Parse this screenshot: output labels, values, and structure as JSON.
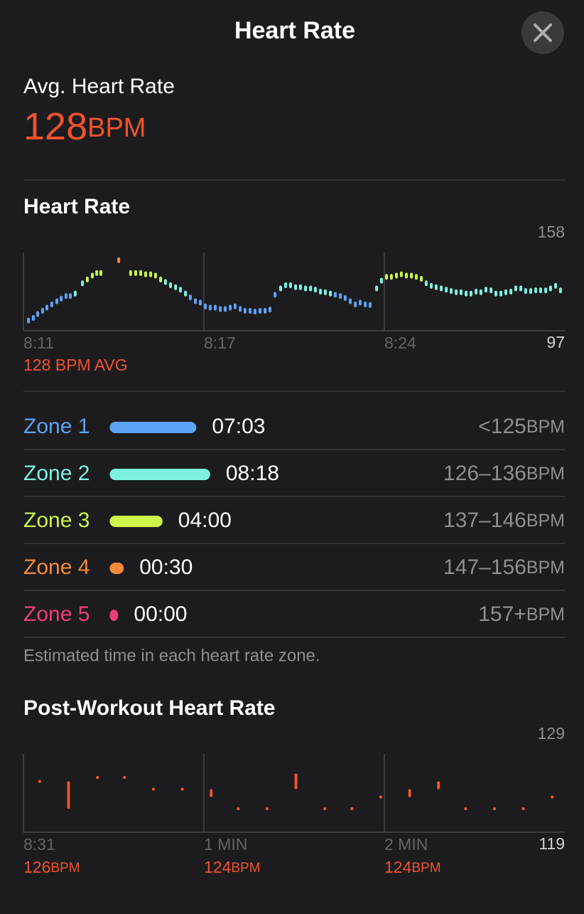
{
  "header": {
    "title": "Heart Rate"
  },
  "unit": "BPM",
  "summary": {
    "label": "Avg. Heart Rate",
    "value": 128
  },
  "chart_data": [
    {
      "type": "dots",
      "title": "Heart Rate",
      "xlim": [
        0,
        3
      ],
      "xticks": [
        {
          "value": 0,
          "label": "8:11"
        },
        {
          "value": 1,
          "label": "8:17"
        },
        {
          "value": 2,
          "label": "8:24"
        }
      ],
      "ylim": [
        97,
        158
      ],
      "yticks": [
        97,
        158
      ],
      "annotation": "128 BPM AVG",
      "series": [
        {
          "name": "Zone 1",
          "color": "#5da3f5",
          "duration": "07:03",
          "range": "<125",
          "x": [
            0.028,
            0.055,
            0.079,
            0.106,
            0.13,
            0.157,
            0.185,
            0.209,
            0.236,
            0.26,
            0.925,
            0.953,
            0.98,
            1.008,
            1.035,
            1.063,
            1.091,
            1.118,
            1.146,
            1.173,
            1.201,
            1.228,
            1.256,
            1.283,
            1.311,
            1.339,
            1.366,
            1.394,
            1.728,
            1.756,
            1.783,
            1.811,
            1.839,
            1.866,
            1.894,
            1.921
          ],
          "values": [
            105,
            107,
            110,
            112.5,
            115,
            117.5,
            120,
            122,
            124,
            124,
            123,
            120,
            119,
            116,
            115,
            115,
            114,
            114,
            115,
            116,
            114,
            112.5,
            112.5,
            112,
            112.5,
            112.5,
            113.5,
            125,
            125,
            124,
            122.5,
            120,
            117.5,
            119,
            117.5,
            117
          ]
        },
        {
          "name": "Zone 2",
          "color": "#7ef2e0",
          "duration": "08:18",
          "range": "126–136",
          "x": [
            0.287,
            0.327,
            0.787,
            0.815,
            0.843,
            0.87,
            0.898,
            1.425,
            1.453,
            1.48,
            1.508,
            1.535,
            1.563,
            1.591,
            1.618,
            1.646,
            1.673,
            1.701,
            1.957,
            1.984,
            2.232,
            2.26,
            2.287,
            2.315,
            2.343,
            2.37,
            2.398,
            2.425,
            2.453,
            2.48,
            2.508,
            2.535,
            2.563,
            2.591,
            2.618,
            2.646,
            2.673,
            2.701,
            2.728,
            2.756,
            2.783,
            2.811,
            2.839,
            2.866,
            2.894,
            2.921,
            2.949,
            2.976
          ],
          "values": [
            126,
            134,
            135,
            132.5,
            131,
            129,
            126,
            130,
            132.5,
            132.5,
            131,
            131,
            130,
            130,
            129,
            127.5,
            127,
            126,
            130,
            136,
            134,
            132,
            131,
            130,
            129,
            128,
            127,
            127,
            126,
            126,
            127.5,
            127,
            129,
            128.5,
            126,
            126,
            127,
            127.5,
            130,
            130,
            128,
            128,
            128.5,
            128.5,
            128.5,
            130,
            132,
            128.5
          ]
        },
        {
          "name": "Zone 3",
          "color": "#cdf54a",
          "duration": "04:00",
          "range": "137–146",
          "x": [
            0.354,
            0.382,
            0.406,
            0.429,
            0.594,
            0.622,
            0.65,
            0.677,
            0.705,
            0.732,
            0.76,
            2.012,
            2.039,
            2.067,
            2.094,
            2.122,
            2.15,
            2.177,
            2.205
          ],
          "values": [
            137,
            140,
            142,
            142,
            142,
            142,
            142,
            141,
            141,
            140,
            137,
            139,
            139,
            140,
            141,
            140,
            140,
            139,
            137.5
          ]
        },
        {
          "name": "Zone 4",
          "color": "#f58a3a",
          "duration": "00:30",
          "range": "147–156",
          "x": [
            0.528
          ],
          "values": [
            152
          ]
        },
        {
          "name": "Zone 5",
          "color": "#f03c7a",
          "duration": "00:00",
          "range": "157+",
          "x": [],
          "values": []
        }
      ],
      "note": "Estimated time in each heart rate zone."
    },
    {
      "type": "ranges",
      "title": "Post-Workout Heart Rate",
      "color": "#f0522d",
      "xlim": [
        0,
        3
      ],
      "xticks": [
        {
          "value": 0,
          "label": "8:31"
        },
        {
          "value": 1,
          "label": "1 MIN"
        },
        {
          "value": 2,
          "label": "2 MIN"
        }
      ],
      "ylim": [
        119,
        129
      ],
      "yticks": [
        119,
        129
      ],
      "readings": [
        126,
        124,
        124
      ],
      "x": [
        0.09,
        0.25,
        0.41,
        0.56,
        0.72,
        0.88,
        1.04,
        1.19,
        1.35,
        1.51,
        1.67,
        1.82,
        1.98,
        2.14,
        2.3,
        2.45,
        2.61,
        2.77,
        2.93
      ],
      "values": [
        [
          125.5,
          125.5
        ],
        [
          122,
          125.5
        ],
        [
          126,
          126
        ],
        [
          126,
          126
        ],
        [
          124.5,
          124.5
        ],
        [
          124.5,
          124.5
        ],
        [
          123.5,
          124.5
        ],
        [
          122,
          122
        ],
        [
          122,
          122
        ],
        [
          124.5,
          126.5
        ],
        [
          122,
          122
        ],
        [
          122,
          122
        ],
        [
          123.5,
          123.5
        ],
        [
          123.5,
          124.5
        ],
        [
          124.5,
          125.5
        ],
        [
          122,
          122
        ],
        [
          122,
          122
        ],
        [
          122,
          122
        ],
        [
          123.5,
          123.5
        ]
      ]
    }
  ]
}
